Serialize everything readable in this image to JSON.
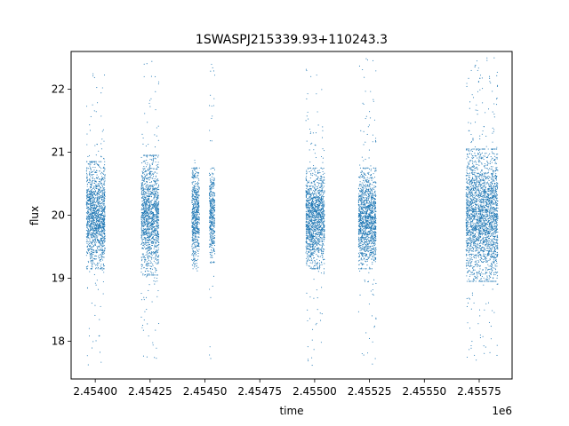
{
  "chart_data": {
    "type": "scatter",
    "title": "1SWASPJ215339.93+110243.3",
    "xlabel": "time",
    "ylabel": "flux",
    "x_offset_label": "1e6",
    "xlim": [
      2453890,
      2455900
    ],
    "ylim": [
      17.4,
      22.6
    ],
    "x_ticks": [
      2454000,
      2454250,
      2454500,
      2454750,
      2455000,
      2455250,
      2455500,
      2455750
    ],
    "x_tick_labels": [
      "2.45400",
      "2.45425",
      "2.45450",
      "2.45475",
      "2.45500",
      "2.45525",
      "2.45550",
      "2.45575"
    ],
    "y_ticks": [
      18,
      19,
      20,
      21,
      22
    ],
    "y_tick_labels": [
      "18",
      "19",
      "20",
      "21",
      "22"
    ],
    "grid": false,
    "point_color": "#1f77b4",
    "clusters": [
      {
        "x_start": 2453960,
        "x_end": 2454045,
        "mean": 20.0,
        "core_low": 19.3,
        "core_high": 20.7,
        "tail_low": 17.6,
        "tail_high": 22.3
      },
      {
        "x_start": 2454210,
        "x_end": 2454290,
        "mean": 20.0,
        "core_low": 19.2,
        "core_high": 20.8,
        "tail_low": 17.7,
        "tail_high": 22.5
      },
      {
        "x_start": 2454440,
        "x_end": 2454475,
        "mean": 20.0,
        "core_low": 19.3,
        "core_high": 20.6,
        "tail_low": 19.1,
        "tail_high": 20.9
      },
      {
        "x_start": 2454520,
        "x_end": 2454545,
        "mean": 20.0,
        "core_low": 19.4,
        "core_high": 20.6,
        "tail_low": 17.7,
        "tail_high": 22.5
      },
      {
        "x_start": 2454960,
        "x_end": 2455045,
        "mean": 19.95,
        "core_low": 19.3,
        "core_high": 20.6,
        "tail_low": 17.6,
        "tail_high": 22.4
      },
      {
        "x_start": 2455200,
        "x_end": 2455280,
        "mean": 19.95,
        "core_low": 19.3,
        "core_high": 20.6,
        "tail_low": 17.6,
        "tail_high": 22.5
      },
      {
        "x_start": 2455690,
        "x_end": 2455835,
        "mean": 20.0,
        "core_low": 19.1,
        "core_high": 20.9,
        "tail_low": 17.6,
        "tail_high": 22.5
      }
    ]
  }
}
